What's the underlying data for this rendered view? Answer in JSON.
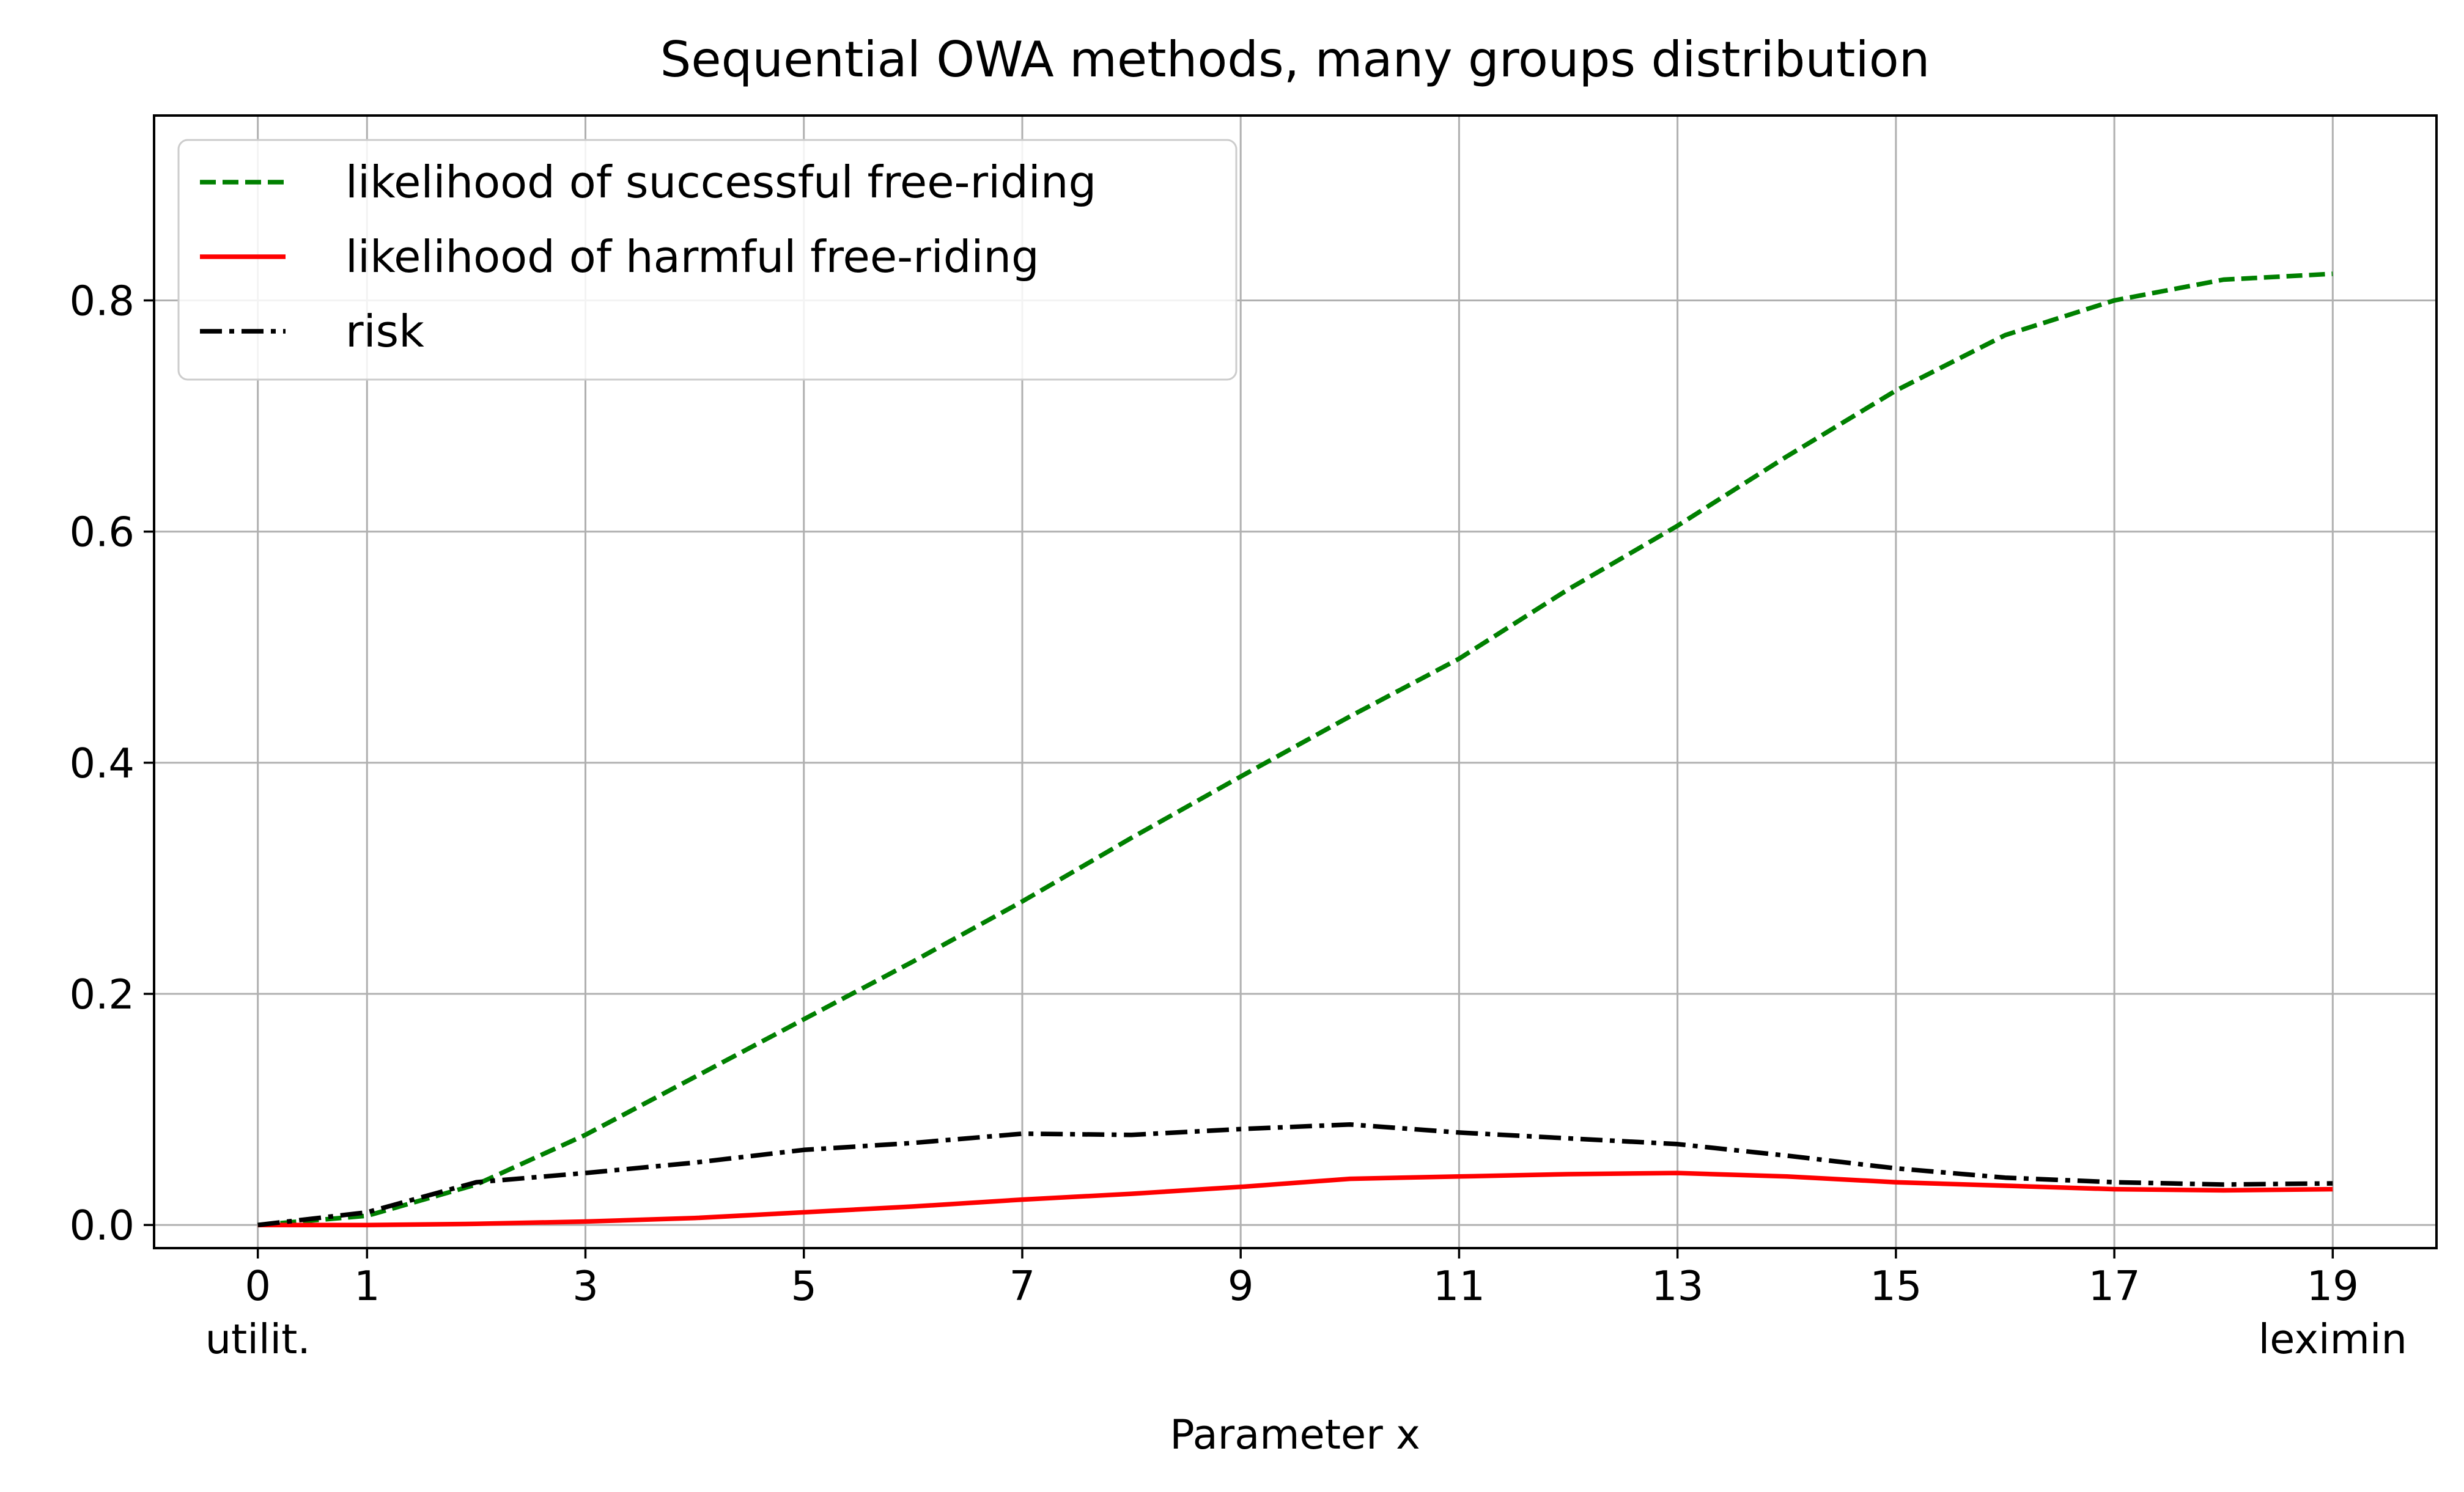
{
  "chart_data": {
    "type": "line",
    "title": "Sequential OWA methods, many groups distribution",
    "xlabel": "Parameter x",
    "ylabel": "",
    "xlim": [
      -0.95,
      19.95
    ],
    "ylim": [
      -0.02,
      0.96
    ],
    "grid": true,
    "legend_position": "top-left",
    "x_ticks": [
      {
        "value": 0,
        "label": "0",
        "sublabel": "utilit."
      },
      {
        "value": 1,
        "label": "1",
        "sublabel": ""
      },
      {
        "value": 3,
        "label": "3",
        "sublabel": ""
      },
      {
        "value": 5,
        "label": "5",
        "sublabel": ""
      },
      {
        "value": 7,
        "label": "7",
        "sublabel": ""
      },
      {
        "value": 9,
        "label": "9",
        "sublabel": ""
      },
      {
        "value": 11,
        "label": "11",
        "sublabel": ""
      },
      {
        "value": 13,
        "label": "13",
        "sublabel": ""
      },
      {
        "value": 15,
        "label": "15",
        "sublabel": ""
      },
      {
        "value": 17,
        "label": "17",
        "sublabel": ""
      },
      {
        "value": 19,
        "label": "19",
        "sublabel": "leximin"
      }
    ],
    "y_ticks": [
      {
        "value": 0.0,
        "label": "0.0"
      },
      {
        "value": 0.2,
        "label": "0.2"
      },
      {
        "value": 0.4,
        "label": "0.4"
      },
      {
        "value": 0.6,
        "label": "0.6"
      },
      {
        "value": 0.8,
        "label": "0.8"
      }
    ],
    "x": [
      0,
      1,
      2,
      3,
      4,
      5,
      6,
      7,
      8,
      9,
      10,
      11,
      12,
      13,
      14,
      15,
      16,
      17,
      18,
      19
    ],
    "series": [
      {
        "name": "likelihood of successful free-riding",
        "color": "#008000",
        "style": "dashed",
        "values": [
          0.0,
          0.008,
          0.035,
          0.078,
          0.128,
          0.178,
          0.228,
          0.28,
          0.335,
          0.388,
          0.44,
          0.49,
          0.55,
          0.605,
          0.665,
          0.722,
          0.77,
          0.8,
          0.818,
          0.823
        ]
      },
      {
        "name": "likelihood of harmful free-riding",
        "color": "#ff0000",
        "style": "solid",
        "values": [
          0.0,
          0.0,
          0.001,
          0.003,
          0.006,
          0.011,
          0.016,
          0.022,
          0.027,
          0.033,
          0.04,
          0.042,
          0.044,
          0.045,
          0.042,
          0.037,
          0.034,
          0.031,
          0.03,
          0.031
        ]
      },
      {
        "name": "risk",
        "color": "#000000",
        "style": "dashdot",
        "values": [
          0.0,
          0.011,
          0.037,
          0.045,
          0.054,
          0.065,
          0.071,
          0.079,
          0.078,
          0.083,
          0.087,
          0.08,
          0.075,
          0.07,
          0.06,
          0.049,
          0.041,
          0.037,
          0.035,
          0.036
        ]
      }
    ]
  }
}
